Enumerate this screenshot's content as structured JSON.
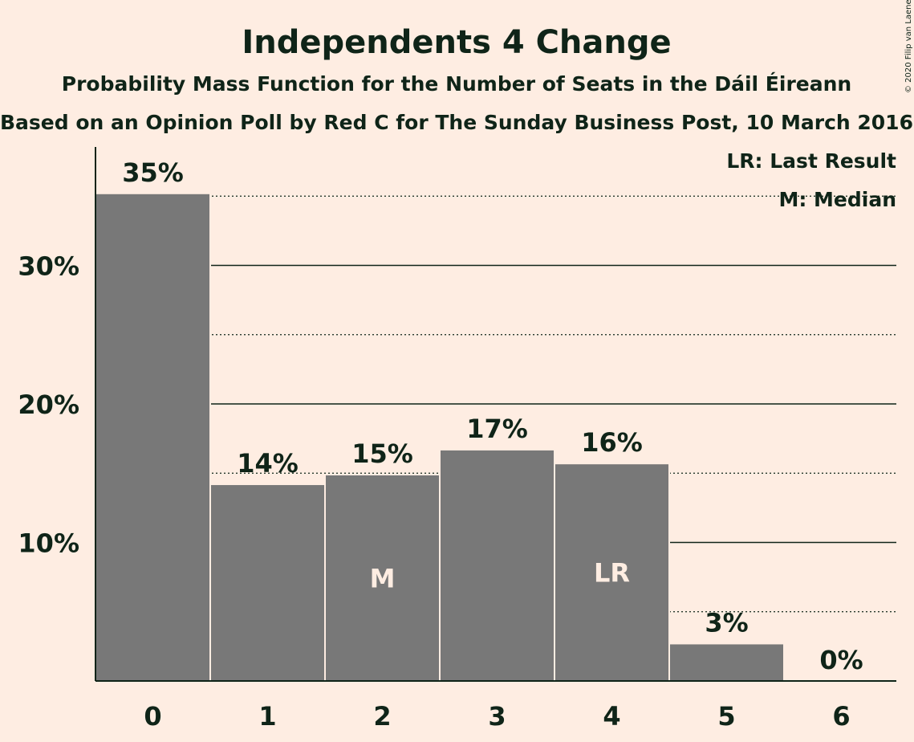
{
  "title": "Independents 4 Change",
  "subtitle1": "Probability Mass Function for the Number of Seats in the Dáil Éireann",
  "subtitle2": "Based on an Opinion Poll by Red C for The Sunday Business Post, 10 March 2016",
  "copyright": "© 2020 Filip van Laenen",
  "legend": {
    "last_result": "LR: Last Result",
    "median": "M: Median"
  },
  "colors": {
    "background": "#FEEDE2",
    "bar": "#787878",
    "text": "#0F2418"
  },
  "chart_data": {
    "type": "bar",
    "categories": [
      "0",
      "1",
      "2",
      "3",
      "4",
      "5",
      "6"
    ],
    "values": [
      35.2,
      14.2,
      14.9,
      16.7,
      15.7,
      2.7,
      0.0
    ],
    "data_labels": [
      "35%",
      "14%",
      "15%",
      "17%",
      "16%",
      "3%",
      "0%"
    ],
    "ylim": [
      0,
      38.5
    ],
    "y_ticks": [
      10,
      20,
      30
    ],
    "y_tick_labels": [
      "10%",
      "20%",
      "30%"
    ],
    "dotted_gridlines": [
      5,
      15,
      25,
      35
    ],
    "solid_gridlines": [
      10,
      20,
      30
    ],
    "median_index": 2,
    "median_label": "M",
    "last_result_index": 4,
    "last_result_label": "LR",
    "legend_position": "top-right"
  }
}
